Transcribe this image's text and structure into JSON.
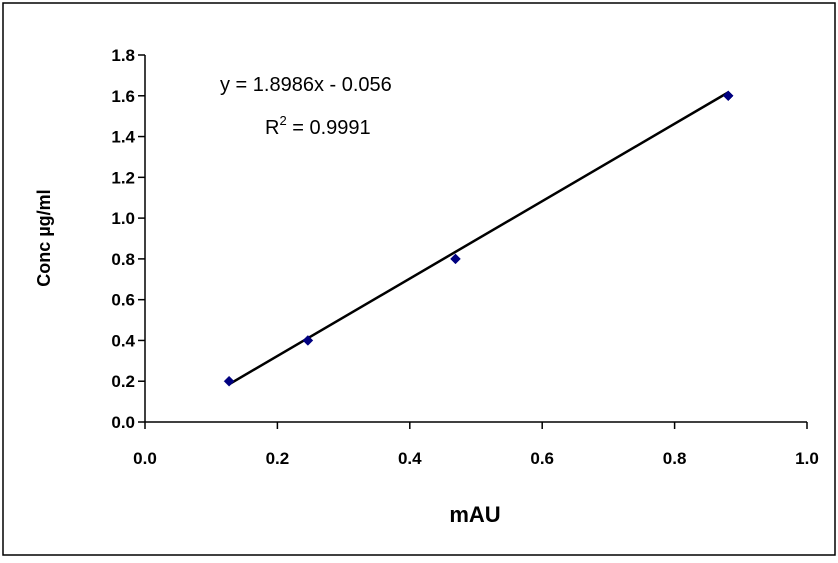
{
  "chart_data": {
    "type": "scatter",
    "title": "",
    "xlabel": "mAU",
    "ylabel": "Conc µg/ml",
    "xlim": [
      0.0,
      1.0
    ],
    "ylim": [
      0.0,
      1.8
    ],
    "x_ticks": [
      0.0,
      0.2,
      0.4,
      0.6,
      0.8,
      1.0
    ],
    "y_ticks": [
      0.0,
      0.2,
      0.4,
      0.6,
      0.8,
      1.0,
      1.2,
      1.4,
      1.6,
      1.8
    ],
    "x_tick_labels": [
      "0.0",
      "0.2",
      "0.4",
      "0.6",
      "0.8",
      "1.0"
    ],
    "y_tick_labels": [
      "0.0",
      "0.2",
      "0.4",
      "0.6",
      "0.8",
      "1.0",
      "1.2",
      "1.4",
      "1.6",
      "1.8"
    ],
    "grid": false,
    "series": [
      {
        "x": [
          0.127,
          0.246,
          0.469,
          0.881
        ],
        "y": [
          0.2,
          0.4,
          0.8,
          1.6
        ],
        "marker": "diamond",
        "color": "#000080"
      }
    ],
    "trendline": {
      "type": "linear",
      "slope": 1.8986,
      "intercept": -0.056,
      "x_range": [
        0.127,
        0.881
      ],
      "color": "#000000"
    },
    "annotations": {
      "equation": "y = 1.8986x - 0.056",
      "r2_prefix": "R",
      "r2_sup": "2",
      "r2_suffix": " = 0.9991"
    }
  }
}
